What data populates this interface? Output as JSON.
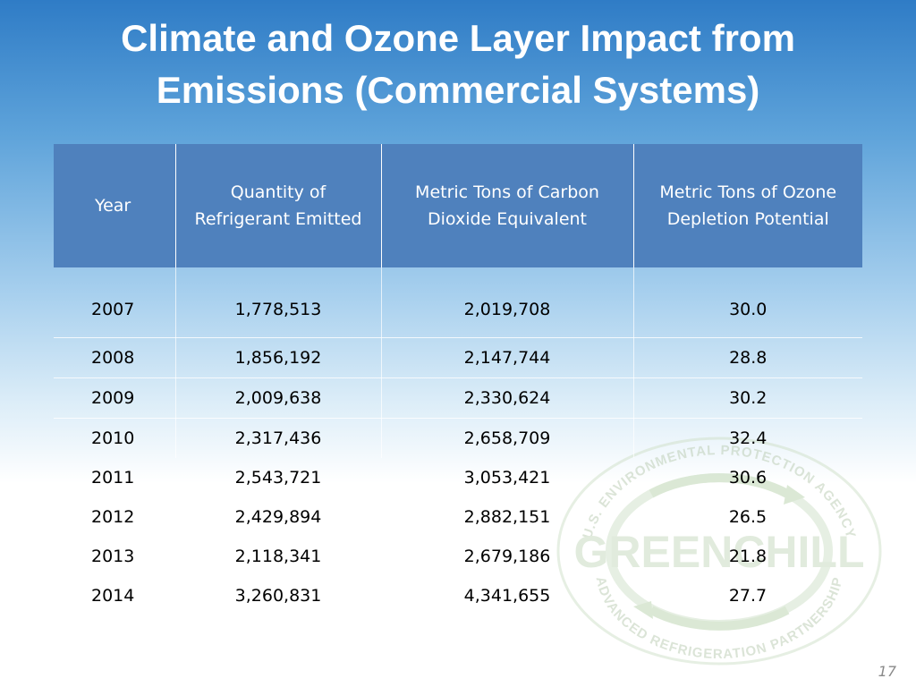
{
  "slide": {
    "title_line1": "Climate and Ozone Layer Impact from",
    "title_line2": "Emissions (Commercial Systems)",
    "page_number": "17"
  },
  "table": {
    "headers": [
      "Year",
      "Quantity of Refrigerant Emitted",
      "Metric Tons of Carbon Dioxide Equivalent",
      "Metric Tons of Ozone Depletion Potential"
    ],
    "rows": [
      [
        "2007",
        "1,778,513",
        "2,019,708",
        "30.0"
      ],
      [
        "2008",
        "1,856,192",
        "2,147,744",
        "28.8"
      ],
      [
        "2009",
        "2,009,638",
        "2,330,624",
        "30.2"
      ],
      [
        "2010",
        "2,317,436",
        "2,658,709",
        "32.4"
      ],
      [
        "2011",
        "2,543,721",
        "3,053,421",
        "30.6"
      ],
      [
        "2012",
        "2,429,894",
        "2,882,151",
        "26.5"
      ],
      [
        "2013",
        "2,118,341",
        "2,679,186",
        "21.8"
      ],
      [
        "2014",
        "3,260,831",
        "4,341,655",
        "27.7"
      ]
    ]
  },
  "watermark": {
    "arc_top": "U.S. ENVIRONMENTAL PROTECTION AGENCY",
    "word": "GREENCHILL",
    "arc_bottom": "ADVANCED REFRIGERATION PARTNERSHIP",
    "icon": "greenchill-logo"
  },
  "colors": {
    "header_fill": "#4f81bd",
    "title_text": "#ffffff",
    "background_top": "#2f7cc6"
  }
}
